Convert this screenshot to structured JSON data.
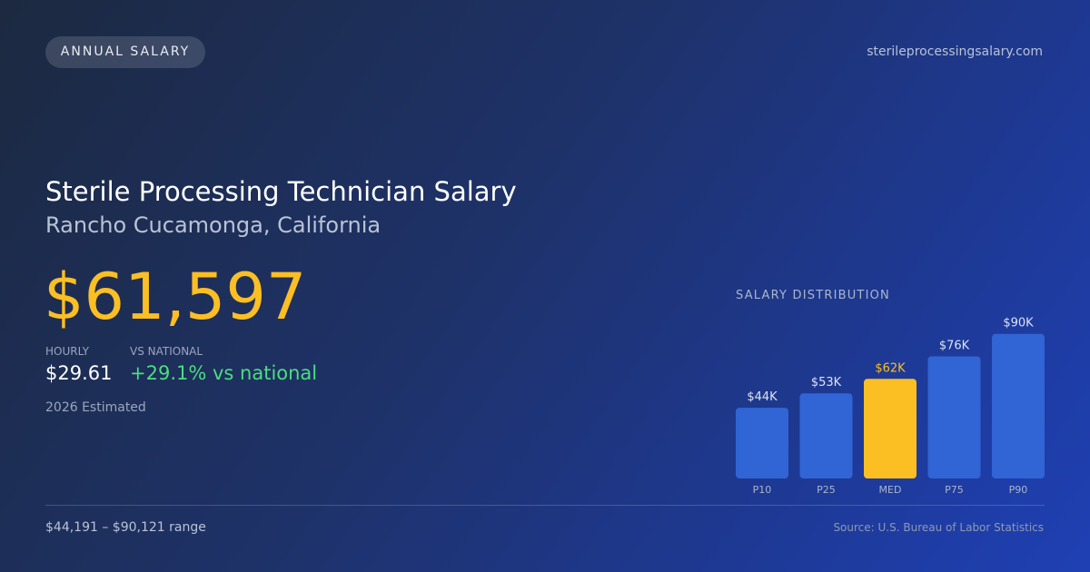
{
  "header": {
    "badge": "ANNUAL SALARY",
    "site": "sterileprocessingsalary.com"
  },
  "title": "Sterile Processing Technician Salary",
  "subtitle": "Rancho Cucamonga, California",
  "salary": "$61,597",
  "stats": [
    {
      "label": "HOURLY",
      "value": "$29.61"
    },
    {
      "label": "VS NATIONAL",
      "value": "+29.1% vs national"
    }
  ],
  "note": "2026 Estimated",
  "footer": {
    "range": "$44,191 – $90,121 range",
    "source": "Source: U.S. Bureau of Labor Statistics"
  },
  "chart_data": {
    "type": "bar",
    "title": "SALARY DISTRIBUTION",
    "categories": [
      "P10",
      "P25",
      "MED",
      "P75",
      "P90"
    ],
    "values": [
      44,
      53,
      62,
      76,
      90
    ],
    "value_labels": [
      "$44K",
      "$53K",
      "$62K",
      "$76K",
      "$90K"
    ],
    "color": "#3164d4",
    "highlight_color": "#fbbf24",
    "highlight_index": 2
  }
}
